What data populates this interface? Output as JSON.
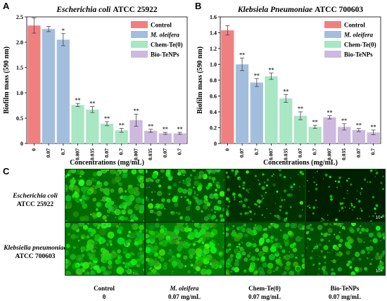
{
  "panels": {
    "a": {
      "letter": "A"
    },
    "b": {
      "letter": "B"
    },
    "c": {
      "letter": "C"
    }
  },
  "colors": {
    "Control": "#f08080",
    "M. oleifera": "#a3bedd",
    "Chem-Te(0)": "#a8e6c4",
    "Bio-TeNPs": "#cdb9de"
  },
  "chart_data": [
    {
      "type": "bar",
      "title_organism": "Escherichia coli",
      "title_strain": "ATCC 25922",
      "xlabel": "Concentrations (mg/mL)",
      "ylabel": "Biofilm mass (590 nm)",
      "ylim": [
        0,
        2.5
      ],
      "yticks": [
        "0",
        "0.5",
        "1.0",
        "1.5",
        "2.0",
        "2.5"
      ],
      "legend_position": "top-right",
      "categories": [
        "0",
        "0.07",
        "0.7",
        "0.007",
        "0.035",
        "0.07",
        "0.7",
        "0.007",
        "0.035",
        "0.07",
        "0.7"
      ],
      "values": [
        2.33,
        2.26,
        2.05,
        0.76,
        0.67,
        0.39,
        0.26,
        0.46,
        0.25,
        0.2,
        0.2
      ],
      "errors": [
        0.15,
        0.05,
        0.12,
        0.03,
        0.06,
        0.04,
        0.04,
        0.12,
        0.03,
        0.02,
        0.02
      ],
      "groups": [
        "Control",
        "M. oleifera",
        "M. oleifera",
        "Chem-Te(0)",
        "Chem-Te(0)",
        "Chem-Te(0)",
        "Chem-Te(0)",
        "Bio-TeNPs",
        "Bio-TeNPs",
        "Bio-TeNPs",
        "Bio-TeNPs"
      ],
      "significance": [
        "",
        "",
        "*",
        "**",
        "**",
        "**",
        "**",
        "**",
        "**",
        "**",
        "**"
      ],
      "series": [
        {
          "name": "Control"
        },
        {
          "name": "M. oleifera"
        },
        {
          "name": "Chem-Te(0)"
        },
        {
          "name": "Bio-TeNPs"
        }
      ]
    },
    {
      "type": "bar",
      "title_organism": "Klebsiela Pneumoniae",
      "title_strain": "ATCC 700603",
      "xlabel": "Concentrations (mg/mL)",
      "ylabel": "Biofilm mass (590 nm)",
      "ylim": [
        0,
        1.6
      ],
      "yticks": [
        "0",
        "0.2",
        "0.4",
        "0.6",
        "0.8",
        "1.0",
        "1.2",
        "1.4",
        "1.6"
      ],
      "legend_position": "top-right",
      "categories": [
        "0",
        "0.07",
        "0.7",
        "0.007",
        "0.035",
        "0.07",
        "0.7",
        "0.007",
        "0.035",
        "0.07",
        "0.7"
      ],
      "values": [
        1.43,
        1.0,
        0.77,
        0.85,
        0.57,
        0.35,
        0.21,
        0.33,
        0.21,
        0.17,
        0.14
      ],
      "errors": [
        0.06,
        0.08,
        0.05,
        0.04,
        0.05,
        0.05,
        0.02,
        0.02,
        0.04,
        0.02,
        0.03
      ],
      "groups": [
        "Control",
        "M. oleifera",
        "M. oleifera",
        "Chem-Te(0)",
        "Chem-Te(0)",
        "Chem-Te(0)",
        "Chem-Te(0)",
        "Bio-TeNPs",
        "Bio-TeNPs",
        "Bio-TeNPs",
        "Bio-TeNPs"
      ],
      "significance": [
        "",
        "**",
        "**",
        "**",
        "**",
        "**",
        "**",
        "**",
        "**",
        "**",
        "**"
      ],
      "series": [
        {
          "name": "Control"
        },
        {
          "name": "M. oleifera"
        },
        {
          "name": "Chem-Te(0)"
        },
        {
          "name": "Bio-TeNPs"
        }
      ]
    }
  ],
  "micrographs": {
    "rows": [
      {
        "organism": "Escherichia coli",
        "strain": "ATCC 25922"
      },
      {
        "organism": "Klebsiella pneumoniae",
        "strain": "ATCC 700603"
      }
    ],
    "columns": [
      {
        "name": "Control",
        "conc": "0",
        "italic": false
      },
      {
        "name": "M. oleifera",
        "conc": "0.07 mg/mL",
        "italic": true
      },
      {
        "name": "Chem-Te(0)",
        "conc": "0.07 mg/mL",
        "italic": false
      },
      {
        "name": "Bio-TeNPs",
        "conc": "0.07 mg/mL",
        "italic": false
      }
    ],
    "magnification": "10×",
    "coverage": [
      [
        0.82,
        0.62,
        0.3,
        0.14
      ],
      [
        0.95,
        0.96,
        0.72,
        0.55
      ]
    ]
  }
}
